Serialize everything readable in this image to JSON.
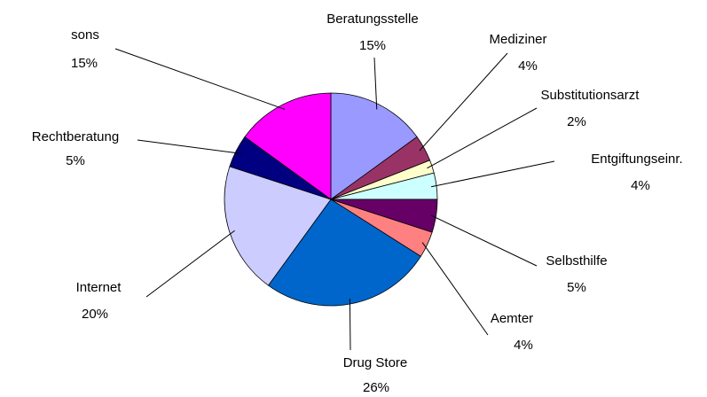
{
  "chart_data": {
    "type": "pie",
    "categories": [
      "Beratungsstelle",
      "Mediziner",
      "Substitutionsarzt",
      "Entgiftungseinr.",
      "Selbsthilfe",
      "Aemter",
      "Drug Store",
      "Internet",
      "Rechtberatung",
      "sons"
    ],
    "values": [
      15,
      4,
      2,
      4,
      5,
      4,
      26,
      20,
      5,
      15
    ],
    "value_labels": [
      "15%",
      "4%",
      "2%",
      "4%",
      "5%",
      "4%",
      "26%",
      "20%",
      "5%",
      "15%"
    ],
    "colors": [
      "#9999ff",
      "#993366",
      "#ffffcc",
      "#ccffff",
      "#660066",
      "#ff8080",
      "#0066cc",
      "#ccccff",
      "#000080",
      "#ff00ff"
    ]
  }
}
